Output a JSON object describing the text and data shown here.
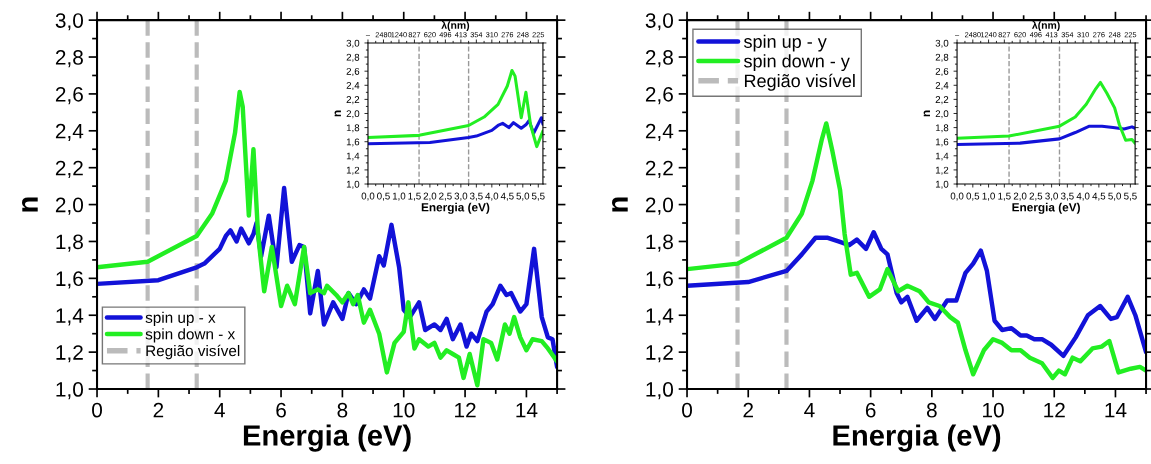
{
  "chart_data": [
    {
      "type": "line",
      "xlabel": "Energia (eV)",
      "ylabel": "n",
      "xlim": [
        0,
        15
      ],
      "ylim": [
        1.0,
        3.0
      ],
      "xticks": [
        0,
        2,
        4,
        6,
        8,
        10,
        12,
        14
      ],
      "yticks": [
        {
          "value": 1.0,
          "label": "1,0"
        },
        {
          "value": 1.2,
          "label": "1,2"
        },
        {
          "value": 1.4,
          "label": "1,4"
        },
        {
          "value": 1.6,
          "label": "1,6"
        },
        {
          "value": 1.8,
          "label": "1,8"
        },
        {
          "value": 2.0,
          "label": "2,0"
        },
        {
          "value": 2.2,
          "label": "2,2"
        },
        {
          "value": 2.4,
          "label": "2,4"
        },
        {
          "value": 2.6,
          "label": "2,6"
        },
        {
          "value": 2.8,
          "label": "2,8"
        },
        {
          "value": 3.0,
          "label": "3,0"
        }
      ],
      "legend": "bottom left",
      "ref_lines": [
        {
          "axis": "x",
          "value": 1.65,
          "label": "Região visível",
          "color": "#bbbbbb",
          "line_style": "dashed"
        },
        {
          "axis": "x",
          "value": 3.25,
          "color": "#bbbbbb",
          "line_style": "dashed"
        }
      ],
      "series": [
        {
          "name": "spin up - x",
          "color": "#1212d8",
          "x": [
            0,
            2,
            3.25,
            3.5,
            4,
            4.2,
            4.35,
            4.55,
            4.7,
            4.95,
            5.1,
            5.2,
            5.35,
            5.6,
            5.85,
            6.1,
            6.35,
            6.6,
            6.75,
            6.95,
            7.2,
            7.4,
            7.7,
            8.0,
            8.2,
            8.45,
            8.7,
            8.9,
            9.2,
            9.35,
            9.6,
            9.85,
            10.0,
            10.2,
            10.5,
            10.7,
            11.0,
            11.2,
            11.4,
            11.6,
            11.85,
            12.05,
            12.2,
            12.4,
            12.7,
            12.9,
            13.15,
            13.35,
            13.5,
            13.8,
            14.0,
            14.25,
            14.5,
            14.7,
            14.85,
            15
          ],
          "values": [
            1.57,
            1.59,
            1.66,
            1.68,
            1.76,
            1.83,
            1.86,
            1.8,
            1.87,
            1.79,
            1.84,
            1.9,
            1.72,
            1.94,
            1.66,
            2.09,
            1.69,
            1.78,
            1.77,
            1.41,
            1.64,
            1.35,
            1.47,
            1.38,
            1.52,
            1.46,
            1.54,
            1.49,
            1.72,
            1.67,
            1.89,
            1.66,
            1.43,
            1.39,
            1.47,
            1.32,
            1.35,
            1.32,
            1.38,
            1.27,
            1.35,
            1.23,
            1.3,
            1.26,
            1.42,
            1.46,
            1.56,
            1.51,
            1.52,
            1.42,
            1.46,
            1.76,
            1.39,
            1.28,
            1.27,
            1.12
          ]
        },
        {
          "name": "spin down - x",
          "color": "#22ee22",
          "x": [
            0,
            1.65,
            3.25,
            3.75,
            4.2,
            4.5,
            4.65,
            4.75,
            4.95,
            5.1,
            5.25,
            5.45,
            5.7,
            6.0,
            6.2,
            6.45,
            6.75,
            6.95,
            7.2,
            7.4,
            7.5,
            7.8,
            8.0,
            8.2,
            8.35,
            8.5,
            8.7,
            8.9,
            9.2,
            9.45,
            9.7,
            10.0,
            10.15,
            10.35,
            10.5,
            10.8,
            11.0,
            11.2,
            11.4,
            11.6,
            11.8,
            11.95,
            12.15,
            12.4,
            12.6,
            12.85,
            13.05,
            13.3,
            13.45,
            13.6,
            13.8,
            14.0,
            14.2,
            14.5,
            14.7,
            15
          ],
          "values": [
            1.66,
            1.69,
            1.83,
            1.95,
            2.13,
            2.39,
            2.61,
            2.53,
            1.94,
            2.3,
            1.84,
            1.53,
            1.77,
            1.45,
            1.56,
            1.46,
            1.77,
            1.52,
            1.54,
            1.52,
            1.56,
            1.51,
            1.47,
            1.52,
            1.46,
            1.51,
            1.36,
            1.43,
            1.3,
            1.09,
            1.25,
            1.31,
            1.47,
            1.22,
            1.27,
            1.23,
            1.25,
            1.17,
            1.21,
            1.19,
            1.17,
            1.06,
            1.19,
            1.02,
            1.27,
            1.25,
            1.16,
            1.35,
            1.3,
            1.39,
            1.28,
            1.21,
            1.27,
            1.26,
            1.22,
            1.15
          ]
        }
      ]
    },
    {
      "type": "line",
      "xlabel": "Energia (eV)",
      "ylabel": "n",
      "xlim": [
        0,
        5.65
      ],
      "ylim": [
        1.0,
        3.0
      ],
      "xticks": [
        {
          "value": 0,
          "label": "0,0"
        },
        {
          "value": 0.5,
          "label": "0,5"
        },
        {
          "value": 1.0,
          "label": "1,0"
        },
        {
          "value": 1.5,
          "label": "1,5"
        },
        {
          "value": 2.0,
          "label": "2,0"
        },
        {
          "value": 2.5,
          "label": "2,5"
        },
        {
          "value": 3.0,
          "label": "3,0"
        },
        {
          "value": 3.5,
          "label": "3,5"
        },
        {
          "value": 4.0,
          "label": "4,0"
        },
        {
          "value": 4.5,
          "label": "4,5"
        },
        {
          "value": 5.0,
          "label": "5,0"
        },
        {
          "value": 5.5,
          "label": "5,5"
        }
      ],
      "annotations": [
        "λ(nm)",
        "–",
        "2480",
        "1240",
        "827",
        "620",
        "496",
        "413",
        "354",
        "310",
        "276",
        "248",
        "225"
      ],
      "yticks": [
        {
          "value": 1.0,
          "label": "1,0"
        },
        {
          "value": 1.2,
          "label": "1,2"
        },
        {
          "value": 1.4,
          "label": "1,4"
        },
        {
          "value": 1.6,
          "label": "1,6"
        },
        {
          "value": 1.8,
          "label": "1,8"
        },
        {
          "value": 2.0,
          "label": "2,0"
        },
        {
          "value": 2.2,
          "label": "2,2"
        },
        {
          "value": 2.4,
          "label": "2,4"
        },
        {
          "value": 2.6,
          "label": "2,6"
        },
        {
          "value": 2.8,
          "label": "2,8"
        },
        {
          "value": 3.0,
          "label": "3,0"
        }
      ],
      "ref_lines": [
        {
          "axis": "x",
          "value": 1.65,
          "color": "#999999",
          "line_style": "dashed"
        },
        {
          "axis": "x",
          "value": 3.25,
          "color": "#999999",
          "line_style": "dashed"
        }
      ],
      "series": [
        {
          "color": "#1212d8",
          "x": [
            0,
            2,
            3.25,
            3.5,
            4,
            4.2,
            4.35,
            4.55,
            4.7,
            4.95,
            5.1,
            5.2,
            5.35,
            5.6,
            5.65
          ],
          "values": [
            1.57,
            1.59,
            1.66,
            1.68,
            1.76,
            1.83,
            1.86,
            1.8,
            1.87,
            1.79,
            1.84,
            1.9,
            1.72,
            1.94,
            1.85
          ]
        },
        {
          "color": "#22ee22",
          "x": [
            0,
            1.65,
            3.25,
            3.75,
            4.2,
            4.5,
            4.65,
            4.75,
            4.95,
            5.1,
            5.25,
            5.45,
            5.65
          ],
          "values": [
            1.66,
            1.69,
            1.83,
            1.95,
            2.13,
            2.39,
            2.61,
            2.53,
            1.94,
            2.3,
            1.84,
            1.53,
            1.75
          ]
        }
      ]
    },
    {
      "type": "line",
      "xlabel": "Energia (eV)",
      "ylabel": "n",
      "xlim": [
        0,
        15
      ],
      "ylim": [
        1.0,
        3.0
      ],
      "xticks": [
        0,
        2,
        4,
        6,
        8,
        10,
        12,
        14
      ],
      "yticks": [
        {
          "value": 1.0,
          "label": "1,0"
        },
        {
          "value": 1.2,
          "label": "1,2"
        },
        {
          "value": 1.4,
          "label": "1,4"
        },
        {
          "value": 1.6,
          "label": "1,6"
        },
        {
          "value": 1.8,
          "label": "1,8"
        },
        {
          "value": 2.0,
          "label": "2,0"
        },
        {
          "value": 2.2,
          "label": "2,2"
        },
        {
          "value": 2.4,
          "label": "2,4"
        },
        {
          "value": 2.6,
          "label": "2,6"
        },
        {
          "value": 2.8,
          "label": "2,8"
        },
        {
          "value": 3.0,
          "label": "3,0"
        }
      ],
      "legend": "top left",
      "ref_lines": [
        {
          "axis": "x",
          "value": 1.65,
          "label": "Região visível",
          "color": "#bbbbbb",
          "line_style": "dashed"
        },
        {
          "axis": "x",
          "value": 3.25,
          "color": "#bbbbbb",
          "line_style": "dashed"
        }
      ],
      "series": [
        {
          "name": "spin up - y",
          "color": "#1212d8",
          "x": [
            0,
            2,
            3.25,
            3.75,
            4.2,
            4.6,
            4.95,
            5.3,
            5.55,
            5.85,
            6.1,
            6.35,
            6.55,
            6.85,
            7.0,
            7.2,
            7.5,
            7.85,
            8.1,
            8.5,
            8.8,
            9.1,
            9.35,
            9.6,
            9.8,
            10.05,
            10.3,
            10.6,
            10.9,
            11.1,
            11.35,
            11.6,
            11.9,
            12.3,
            12.7,
            13.1,
            13.5,
            13.85,
            14.05,
            14.4,
            14.65,
            15
          ],
          "values": [
            1.56,
            1.58,
            1.64,
            1.73,
            1.82,
            1.82,
            1.8,
            1.78,
            1.81,
            1.76,
            1.85,
            1.76,
            1.73,
            1.52,
            1.47,
            1.5,
            1.37,
            1.44,
            1.38,
            1.48,
            1.48,
            1.63,
            1.68,
            1.75,
            1.64,
            1.37,
            1.32,
            1.33,
            1.29,
            1.29,
            1.27,
            1.27,
            1.24,
            1.18,
            1.28,
            1.4,
            1.45,
            1.38,
            1.39,
            1.5,
            1.4,
            1.2
          ]
        },
        {
          "name": "spin down - y",
          "color": "#22ee22",
          "x": [
            0,
            1.65,
            3.25,
            3.75,
            4.1,
            4.4,
            4.55,
            4.75,
            5.0,
            5.15,
            5.35,
            5.55,
            5.95,
            6.3,
            6.55,
            6.9,
            7.2,
            7.6,
            7.9,
            8.25,
            8.6,
            8.85,
            9.1,
            9.35,
            9.7,
            10.0,
            10.3,
            10.6,
            10.9,
            11.2,
            11.6,
            11.95,
            12.15,
            12.35,
            12.6,
            12.85,
            13.25,
            13.55,
            13.8,
            14.1,
            14.5,
            14.8,
            15
          ],
          "values": [
            1.65,
            1.68,
            1.82,
            1.95,
            2.13,
            2.35,
            2.44,
            2.29,
            2.08,
            1.84,
            1.62,
            1.63,
            1.5,
            1.54,
            1.65,
            1.53,
            1.56,
            1.53,
            1.47,
            1.45,
            1.39,
            1.36,
            1.21,
            1.08,
            1.21,
            1.27,
            1.25,
            1.21,
            1.21,
            1.17,
            1.14,
            1.06,
            1.1,
            1.08,
            1.17,
            1.15,
            1.22,
            1.23,
            1.26,
            1.09,
            1.11,
            1.12,
            1.1
          ]
        }
      ]
    },
    {
      "type": "line",
      "xlabel": "Energia (eV)",
      "ylabel": "n",
      "xlim": [
        0,
        5.65
      ],
      "ylim": [
        1.0,
        3.0
      ],
      "xticks": [
        {
          "value": 0,
          "label": "0,0"
        },
        {
          "value": 0.5,
          "label": "0,5"
        },
        {
          "value": 1.0,
          "label": "1,0"
        },
        {
          "value": 1.5,
          "label": "1,5"
        },
        {
          "value": 2.0,
          "label": "2,0"
        },
        {
          "value": 2.5,
          "label": "2,5"
        },
        {
          "value": 3.0,
          "label": "3,0"
        },
        {
          "value": 3.5,
          "label": "3,5"
        },
        {
          "value": 4.0,
          "label": "4,0"
        },
        {
          "value": 4.5,
          "label": "4,5"
        },
        {
          "value": 5.0,
          "label": "5,0"
        },
        {
          "value": 5.5,
          "label": "5,5"
        }
      ],
      "annotations": [
        "λ(nm)",
        "–",
        "2480",
        "1240",
        "827",
        "620",
        "496",
        "413",
        "354",
        "310",
        "276",
        "248",
        "225"
      ],
      "yticks": [
        {
          "value": 1.0,
          "label": "1,0"
        },
        {
          "value": 1.2,
          "label": "1,2"
        },
        {
          "value": 1.4,
          "label": "1,4"
        },
        {
          "value": 1.6,
          "label": "1,6"
        },
        {
          "value": 1.8,
          "label": "1,8"
        },
        {
          "value": 2.0,
          "label": "2,0"
        },
        {
          "value": 2.2,
          "label": "2,2"
        },
        {
          "value": 2.4,
          "label": "2,4"
        },
        {
          "value": 2.6,
          "label": "2,6"
        },
        {
          "value": 2.8,
          "label": "2,8"
        },
        {
          "value": 3.0,
          "label": "3,0"
        }
      ],
      "ref_lines": [
        {
          "axis": "x",
          "value": 1.65,
          "color": "#999999",
          "line_style": "dashed"
        },
        {
          "axis": "x",
          "value": 3.25,
          "color": "#999999",
          "line_style": "dashed"
        }
      ],
      "series": [
        {
          "color": "#1212d8",
          "x": [
            0,
            2,
            3.25,
            3.75,
            4.2,
            4.6,
            4.95,
            5.3,
            5.55,
            5.65
          ],
          "values": [
            1.56,
            1.58,
            1.64,
            1.73,
            1.82,
            1.82,
            1.8,
            1.78,
            1.81,
            1.79
          ]
        },
        {
          "color": "#22ee22",
          "x": [
            0,
            1.65,
            3.25,
            3.75,
            4.1,
            4.4,
            4.55,
            4.75,
            5.0,
            5.15,
            5.35,
            5.55,
            5.65
          ],
          "values": [
            1.65,
            1.68,
            1.82,
            1.95,
            2.13,
            2.35,
            2.44,
            2.29,
            2.08,
            1.84,
            1.62,
            1.63,
            1.58
          ]
        }
      ]
    }
  ]
}
